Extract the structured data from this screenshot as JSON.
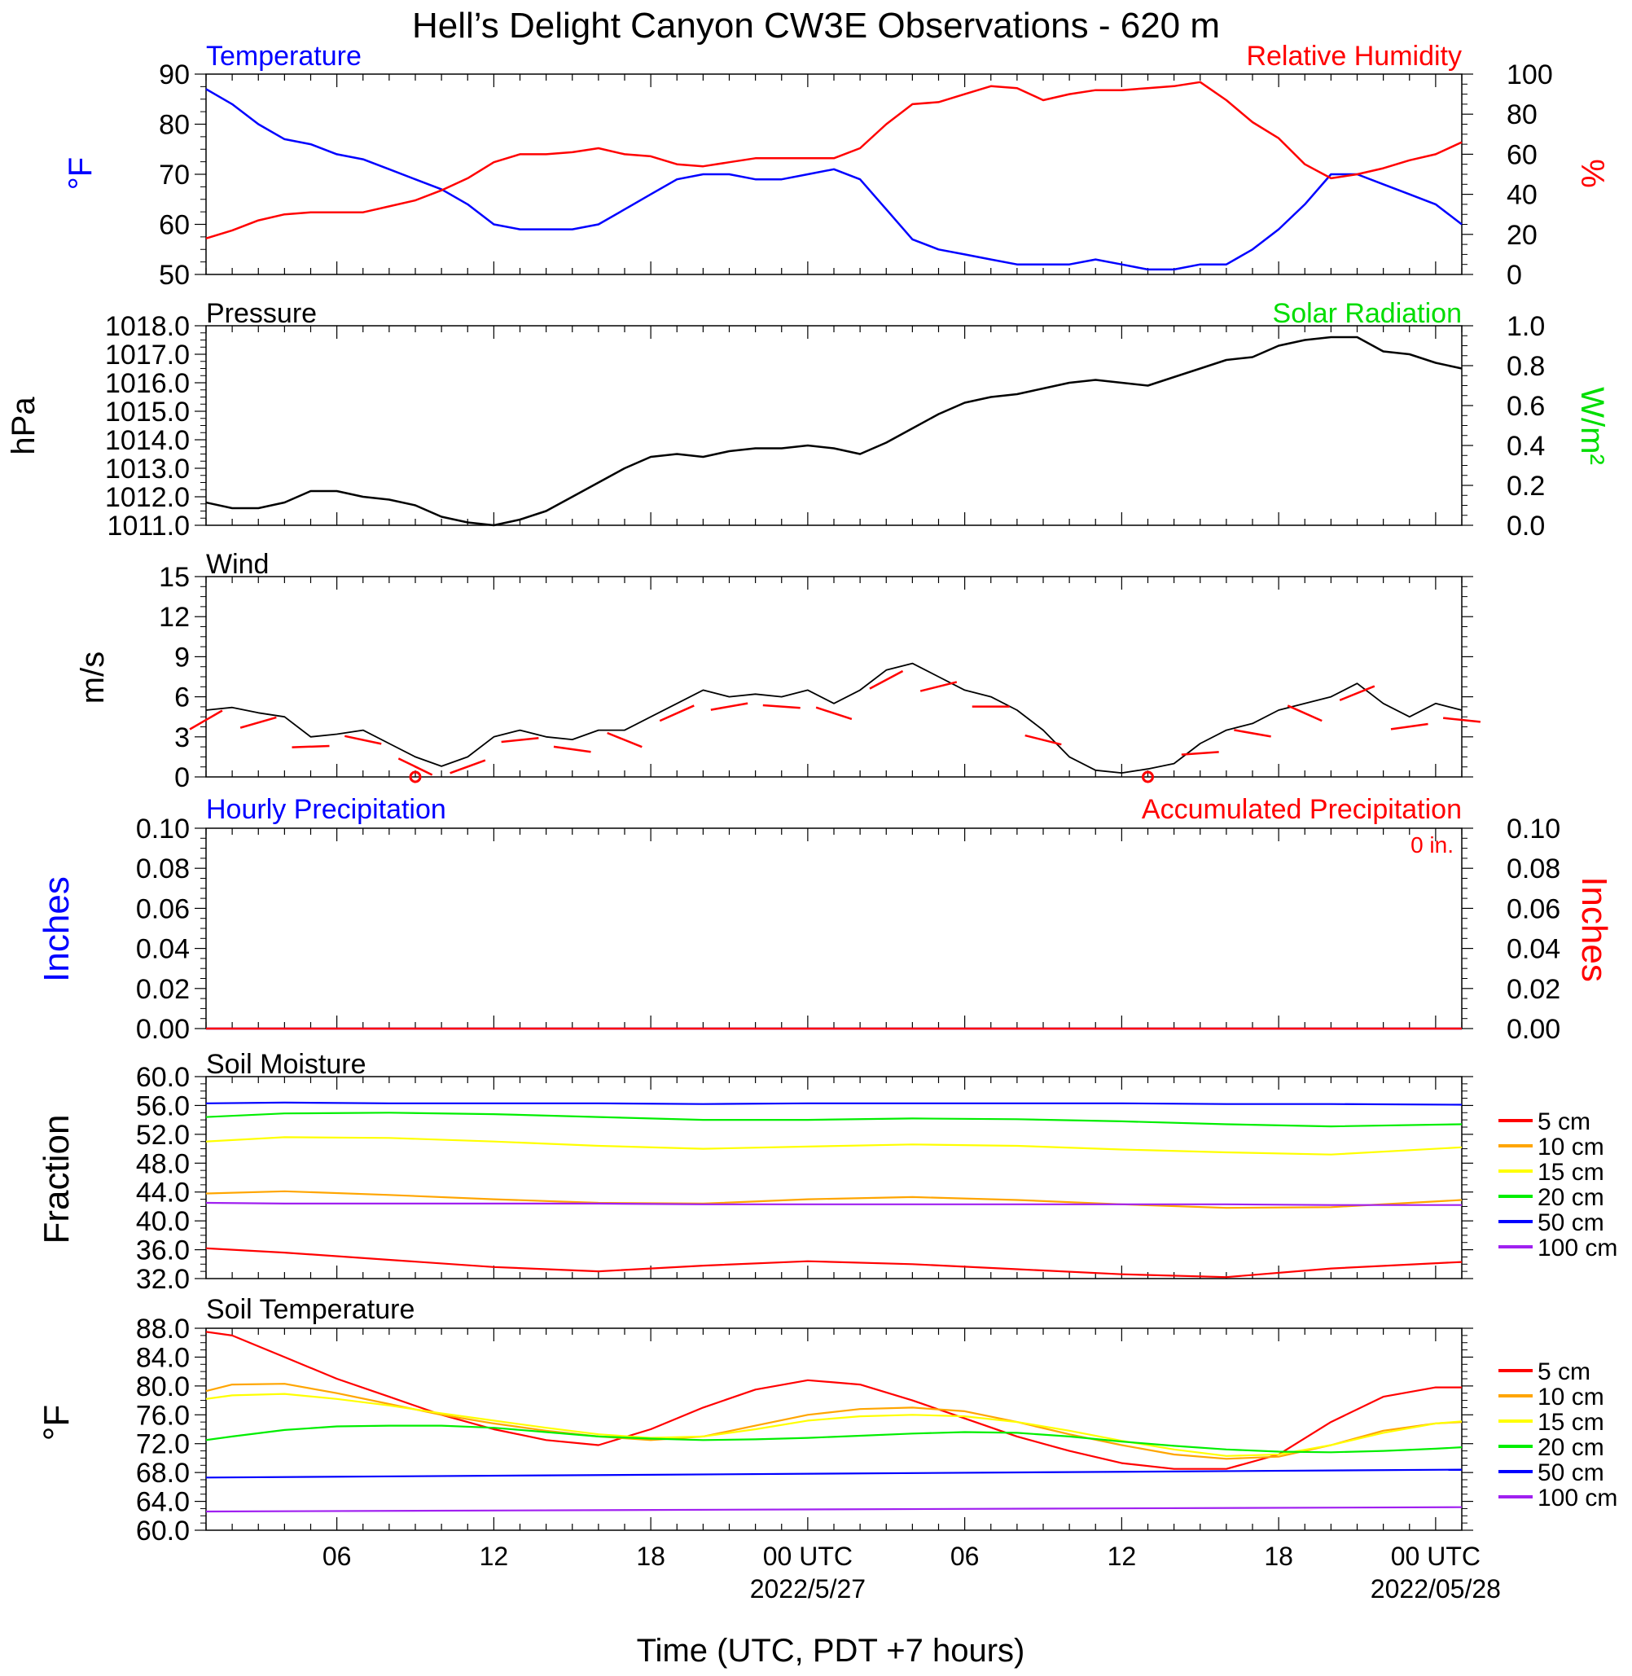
{
  "title": "Hell’s Delight Canyon CW3E Observations - 620 m",
  "x_axis": {
    "label": "Time (UTC, PDT +7 hours)",
    "tick_hours": [
      6,
      12,
      18,
      24,
      30,
      36,
      42,
      48
    ],
    "tick_labels": [
      "06",
      "12",
      "18",
      "00 UTC",
      "06",
      "12",
      "18",
      "00 UTC"
    ],
    "date_labels": [
      {
        "hour": 24,
        "text": "2022/5/27"
      },
      {
        "hour": 48,
        "text": "2022/05/28"
      }
    ],
    "range_hours": [
      1,
      49
    ]
  },
  "colors": {
    "temperature": "#0000ff",
    "humidity": "#ff0000",
    "pressure": "#000000",
    "solar": "#00dd00",
    "wind_barb": "#ff0000",
    "hourly_precip": "#0000ff",
    "accum_precip": "#ff0000",
    "depths": [
      "#ff0000",
      "#ffa500",
      "#ffff00",
      "#00ee00",
      "#0000ff",
      "#a020f0"
    ]
  },
  "panels": {
    "temp": {
      "left_title": "Temperature",
      "right_title": "Relative Humidity",
      "left_unit": "°F",
      "right_unit": "%",
      "left_ticks": [
        "90",
        "80",
        "70",
        "60",
        "50"
      ],
      "right_ticks": [
        "100",
        "80",
        "60",
        "40",
        "20",
        "0"
      ]
    },
    "pressure": {
      "left_title": "Pressure",
      "right_title": "Solar Radiation",
      "left_unit": "hPa",
      "right_unit": "W/m²",
      "left_ticks": [
        "1018.0",
        "1017.0",
        "1016.0",
        "1015.0",
        "1014.0",
        "1013.0",
        "1012.0",
        "1011.0"
      ],
      "right_ticks": [
        "1.0",
        "0.8",
        "0.6",
        "0.4",
        "0.2",
        "0.0"
      ]
    },
    "wind": {
      "left_title": "Wind",
      "left_unit": "m/s",
      "left_ticks": [
        "15",
        "12",
        "9",
        "6",
        "3",
        "0"
      ]
    },
    "precip": {
      "left_title": "Hourly Precipitation",
      "right_title": "Accumulated Precipitation",
      "annotation": "0 in.",
      "left_unit": "Inches",
      "right_unit": "Inches",
      "left_ticks": [
        "0.10",
        "0.08",
        "0.06",
        "0.04",
        "0.02",
        "0.00"
      ],
      "right_ticks": [
        "0.10",
        "0.08",
        "0.06",
        "0.04",
        "0.02",
        "0.00"
      ]
    },
    "soilm": {
      "left_title": "Soil Moisture",
      "left_unit": "Fraction",
      "left_ticks": [
        "60.0",
        "56.0",
        "52.0",
        "48.0",
        "44.0",
        "40.0",
        "36.0",
        "32.0"
      ],
      "legend": [
        "5 cm",
        "10 cm",
        "15 cm",
        "20 cm",
        "50 cm",
        "100 cm"
      ]
    },
    "soilt": {
      "left_title": "Soil Temperature",
      "left_unit": "°F",
      "left_ticks": [
        "88.0",
        "84.0",
        "80.0",
        "76.0",
        "72.0",
        "68.0",
        "64.0",
        "60.0"
      ],
      "legend": [
        "5 cm",
        "10 cm",
        "15 cm",
        "20 cm",
        "50 cm",
        "100 cm"
      ]
    }
  },
  "chart_data": [
    {
      "type": "line",
      "title": "Temperature / Relative Humidity",
      "ylabel": "°F",
      "y2label": "%",
      "ylim": [
        50,
        90
      ],
      "y2lim": [
        0,
        100
      ],
      "series": [
        {
          "name": "Temperature",
          "axis": "left",
          "x": [
            1,
            2,
            3,
            4,
            5,
            6,
            7,
            8,
            9,
            10,
            11,
            12,
            13,
            14,
            15,
            16,
            17,
            18,
            19,
            20,
            21,
            22,
            23,
            24,
            25,
            26,
            27,
            28,
            29,
            30,
            31,
            32,
            33,
            34,
            35,
            36,
            37,
            38,
            39,
            40,
            41,
            42,
            43,
            44,
            45,
            46,
            47,
            48,
            49
          ],
          "values": [
            87,
            84,
            80,
            77,
            76,
            74,
            73,
            71,
            69,
            67,
            64,
            60,
            59,
            59,
            59,
            60,
            63,
            66,
            69,
            70,
            70,
            69,
            69,
            70,
            71,
            69,
            63,
            57,
            55,
            54,
            53,
            52,
            52,
            52,
            53,
            52,
            51,
            51,
            52,
            52,
            55,
            59,
            64,
            70,
            70,
            68,
            66,
            64,
            60
          ]
        },
        {
          "name": "Relative Humidity",
          "axis": "right",
          "x": [
            1,
            2,
            3,
            4,
            5,
            6,
            7,
            8,
            9,
            10,
            11,
            12,
            13,
            14,
            15,
            16,
            17,
            18,
            19,
            20,
            21,
            22,
            23,
            24,
            25,
            26,
            27,
            28,
            29,
            30,
            31,
            32,
            33,
            34,
            35,
            36,
            37,
            38,
            39,
            40,
            41,
            42,
            43,
            44,
            45,
            46,
            47,
            48,
            49
          ],
          "values": [
            18,
            22,
            27,
            30,
            31,
            31,
            31,
            34,
            37,
            42,
            48,
            56,
            60,
            60,
            61,
            63,
            60,
            59,
            55,
            54,
            56,
            58,
            58,
            58,
            58,
            63,
            75,
            85,
            86,
            90,
            94,
            93,
            87,
            90,
            92,
            92,
            93,
            94,
            96,
            87,
            76,
            68,
            55,
            48,
            50,
            53,
            57,
            60,
            66
          ]
        }
      ]
    },
    {
      "type": "line",
      "title": "Pressure / Solar Radiation",
      "ylabel": "hPa",
      "y2label": "W/m²",
      "ylim": [
        1011.0,
        1018.0
      ],
      "y2lim": [
        0.0,
        1.0
      ],
      "series": [
        {
          "name": "Pressure",
          "axis": "left",
          "x": [
            1,
            2,
            3,
            4,
            5,
            6,
            7,
            8,
            9,
            10,
            11,
            12,
            13,
            14,
            15,
            16,
            17,
            18,
            19,
            20,
            21,
            22,
            23,
            24,
            25,
            26,
            27,
            28,
            29,
            30,
            31,
            32,
            33,
            34,
            35,
            36,
            37,
            38,
            39,
            40,
            41,
            42,
            43,
            44,
            45,
            46,
            47,
            48,
            49
          ],
          "values": [
            1011.8,
            1011.6,
            1011.6,
            1011.8,
            1012.2,
            1012.2,
            1012.0,
            1011.9,
            1011.7,
            1011.3,
            1011.1,
            1011.0,
            1011.2,
            1011.5,
            1012.0,
            1012.5,
            1013.0,
            1013.4,
            1013.5,
            1013.4,
            1013.6,
            1013.7,
            1013.7,
            1013.8,
            1013.7,
            1013.5,
            1013.9,
            1014.4,
            1014.9,
            1015.3,
            1015.5,
            1015.6,
            1015.8,
            1016.0,
            1016.1,
            1016.0,
            1015.9,
            1016.2,
            1016.5,
            1016.8,
            1016.9,
            1017.3,
            1017.5,
            1017.6,
            1017.6,
            1017.1,
            1017.0,
            1016.7,
            1016.5
          ]
        }
      ]
    },
    {
      "type": "line",
      "title": "Wind",
      "ylabel": "m/s",
      "ylim": [
        0,
        15
      ],
      "series": [
        {
          "name": "Wind",
          "x": [
            1,
            2,
            3,
            4,
            5,
            6,
            7,
            8,
            9,
            10,
            11,
            12,
            13,
            14,
            15,
            16,
            17,
            18,
            19,
            20,
            21,
            22,
            23,
            24,
            25,
            26,
            27,
            28,
            29,
            30,
            31,
            32,
            33,
            34,
            35,
            36,
            37,
            38,
            39,
            40,
            41,
            42,
            43,
            44,
            45,
            46,
            47,
            48,
            49
          ],
          "values": [
            5.0,
            5.2,
            4.8,
            4.5,
            3.0,
            3.2,
            3.5,
            2.5,
            1.5,
            0.8,
            1.5,
            3.0,
            3.5,
            3.0,
            2.8,
            3.5,
            3.5,
            4.5,
            5.5,
            6.5,
            6.0,
            6.2,
            6.0,
            6.5,
            5.5,
            6.5,
            8.0,
            8.5,
            7.5,
            6.5,
            6.0,
            5.0,
            3.5,
            1.5,
            0.5,
            0.3,
            0.6,
            1.0,
            2.5,
            3.5,
            4.0,
            5.0,
            5.5,
            6.0,
            7.0,
            5.5,
            4.5,
            5.5,
            5.0
          ]
        }
      ],
      "annotations": [
        {
          "type": "calm",
          "x": 9
        },
        {
          "type": "calm",
          "x": 37
        }
      ]
    },
    {
      "type": "line",
      "title": "Hourly Precipitation / Accumulated Precipitation",
      "ylabel": "Inches",
      "y2label": "Inches",
      "ylim": [
        0.0,
        0.1
      ],
      "y2lim": [
        0.0,
        0.1
      ],
      "series": [
        {
          "name": "Hourly Precipitation",
          "x": [
            1,
            49
          ],
          "values": [
            0,
            0
          ]
        },
        {
          "name": "Accumulated Precipitation",
          "x": [
            1,
            49
          ],
          "values": [
            0,
            0
          ]
        }
      ]
    },
    {
      "type": "line",
      "title": "Soil Moisture",
      "ylabel": "Fraction",
      "ylim": [
        32.0,
        60.0
      ],
      "series": [
        {
          "name": "5 cm",
          "x": [
            1,
            4,
            8,
            12,
            16,
            20,
            24,
            28,
            32,
            36,
            40,
            44,
            49
          ],
          "values": [
            36.2,
            35.6,
            34.6,
            33.6,
            33.0,
            33.8,
            34.4,
            34.0,
            33.3,
            32.6,
            32.2,
            33.4,
            34.3
          ]
        },
        {
          "name": "10 cm",
          "x": [
            1,
            4,
            8,
            12,
            16,
            20,
            24,
            28,
            32,
            36,
            40,
            44,
            49
          ],
          "values": [
            43.8,
            44.1,
            43.6,
            43.0,
            42.5,
            42.4,
            43.0,
            43.3,
            42.9,
            42.3,
            41.8,
            41.9,
            42.9
          ]
        },
        {
          "name": "15 cm",
          "x": [
            1,
            4,
            8,
            12,
            16,
            20,
            24,
            28,
            32,
            36,
            40,
            44,
            49
          ],
          "values": [
            51.0,
            51.6,
            51.5,
            51.0,
            50.4,
            50.0,
            50.3,
            50.6,
            50.4,
            49.9,
            49.5,
            49.2,
            50.2
          ]
        },
        {
          "name": "20 cm",
          "x": [
            1,
            4,
            8,
            12,
            16,
            20,
            24,
            28,
            32,
            36,
            40,
            44,
            49
          ],
          "values": [
            54.4,
            54.9,
            55.0,
            54.8,
            54.4,
            54.0,
            54.0,
            54.2,
            54.1,
            53.8,
            53.4,
            53.1,
            53.4
          ]
        },
        {
          "name": "50 cm",
          "x": [
            1,
            4,
            8,
            12,
            16,
            20,
            24,
            28,
            32,
            36,
            40,
            44,
            49
          ],
          "values": [
            56.3,
            56.4,
            56.3,
            56.3,
            56.3,
            56.2,
            56.3,
            56.3,
            56.3,
            56.3,
            56.2,
            56.2,
            56.1
          ]
        },
        {
          "name": "100 cm",
          "x": [
            1,
            4,
            8,
            12,
            16,
            20,
            24,
            28,
            32,
            36,
            40,
            44,
            49
          ],
          "values": [
            42.5,
            42.4,
            42.4,
            42.4,
            42.4,
            42.3,
            42.3,
            42.3,
            42.3,
            42.3,
            42.3,
            42.2,
            42.2
          ]
        }
      ]
    },
    {
      "type": "line",
      "title": "Soil Temperature",
      "ylabel": "°F",
      "ylim": [
        60.0,
        88.0
      ],
      "series": [
        {
          "name": "5 cm",
          "x": [
            1,
            2,
            4,
            6,
            8,
            10,
            12,
            14,
            16,
            18,
            20,
            22,
            24,
            26,
            28,
            30,
            32,
            34,
            36,
            38,
            40,
            42,
            44,
            46,
            48,
            49
          ],
          "values": [
            87.5,
            87.0,
            84.0,
            81.0,
            78.5,
            76.0,
            74.0,
            72.5,
            71.8,
            74.0,
            77.0,
            79.5,
            80.8,
            80.2,
            78.0,
            75.5,
            73.0,
            71.0,
            69.3,
            68.5,
            68.5,
            70.5,
            75.0,
            78.5,
            79.8,
            79.8
          ]
        },
        {
          "name": "10 cm",
          "x": [
            1,
            2,
            4,
            6,
            8,
            10,
            12,
            14,
            16,
            18,
            20,
            22,
            24,
            26,
            28,
            30,
            32,
            34,
            36,
            38,
            40,
            42,
            44,
            46,
            48,
            49
          ],
          "values": [
            79.3,
            80.2,
            80.3,
            79.0,
            77.5,
            76.0,
            74.8,
            73.8,
            73.0,
            72.5,
            73.0,
            74.5,
            76.0,
            76.8,
            77.0,
            76.5,
            75.0,
            73.3,
            71.8,
            70.5,
            69.9,
            70.2,
            71.8,
            73.8,
            74.8,
            75.0
          ]
        },
        {
          "name": "15 cm",
          "x": [
            1,
            2,
            4,
            6,
            8,
            10,
            12,
            14,
            16,
            18,
            20,
            22,
            24,
            26,
            28,
            30,
            32,
            34,
            36,
            38,
            40,
            42,
            44,
            46,
            48,
            49
          ],
          "values": [
            78.2,
            78.7,
            78.9,
            78.2,
            77.3,
            76.2,
            75.2,
            74.2,
            73.3,
            72.8,
            73.0,
            74.0,
            75.2,
            75.8,
            76.0,
            75.8,
            75.0,
            73.8,
            72.4,
            71.2,
            70.3,
            70.5,
            71.8,
            73.5,
            74.8,
            75.1
          ]
        },
        {
          "name": "20 cm",
          "x": [
            1,
            2,
            4,
            6,
            8,
            10,
            12,
            14,
            16,
            18,
            20,
            22,
            24,
            26,
            28,
            30,
            32,
            34,
            36,
            38,
            40,
            42,
            44,
            46,
            48,
            49
          ],
          "values": [
            72.5,
            73.0,
            73.9,
            74.4,
            74.5,
            74.5,
            74.2,
            73.6,
            73.0,
            72.7,
            72.5,
            72.6,
            72.8,
            73.1,
            73.4,
            73.6,
            73.5,
            73.0,
            72.3,
            71.7,
            71.2,
            70.9,
            70.8,
            71.0,
            71.3,
            71.5
          ]
        },
        {
          "name": "50 cm",
          "x": [
            1,
            49
          ],
          "values": [
            67.3,
            68.4
          ]
        },
        {
          "name": "100 cm",
          "x": [
            1,
            49
          ],
          "values": [
            62.6,
            63.2
          ]
        }
      ]
    }
  ]
}
